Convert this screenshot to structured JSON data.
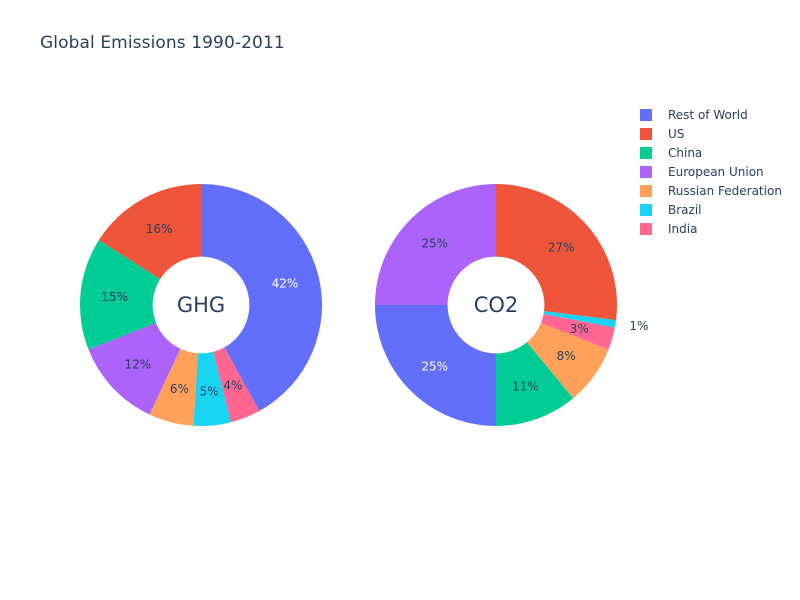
{
  "chart_data": {
    "type": "pie",
    "title": "Global Emissions 1990-2011",
    "legend_placement": "top-right",
    "labels": [
      "Rest of World",
      "US",
      "China",
      "European Union",
      "Russian Federation",
      "Brazil",
      "India"
    ],
    "colors": [
      "#636efa",
      "#ef553b",
      "#00cc96",
      "#ab63fa",
      "#ffa15a",
      "#19d3f3",
      "#ff6692"
    ],
    "pies": [
      {
        "name": "GHG",
        "center_label": "GHG",
        "hole": true,
        "direction": "clockwise",
        "values": [
          42,
          16,
          15,
          12,
          6,
          5,
          4
        ],
        "display_order": [
          0,
          6,
          5,
          4,
          3,
          2,
          1
        ],
        "percent_labels": {
          "Rest of World": "42%",
          "US": "16%",
          "China": "15%",
          "European Union": "12%",
          "Russian Federation": "6%",
          "Brazil": "5%",
          "India": "4%"
        }
      },
      {
        "name": "CO2",
        "center_label": "CO2",
        "hole": true,
        "direction": "clockwise",
        "values": [
          25,
          27,
          11,
          25,
          8,
          1,
          3
        ],
        "display_order": [
          1,
          5,
          6,
          4,
          2,
          0,
          3
        ],
        "percent_labels": {
          "Rest of World": "25%",
          "US": "27%",
          "China": "11%",
          "European Union": "25%",
          "Russian Federation": "8%",
          "Brazil": "1%",
          "India": "3%"
        }
      }
    ]
  }
}
